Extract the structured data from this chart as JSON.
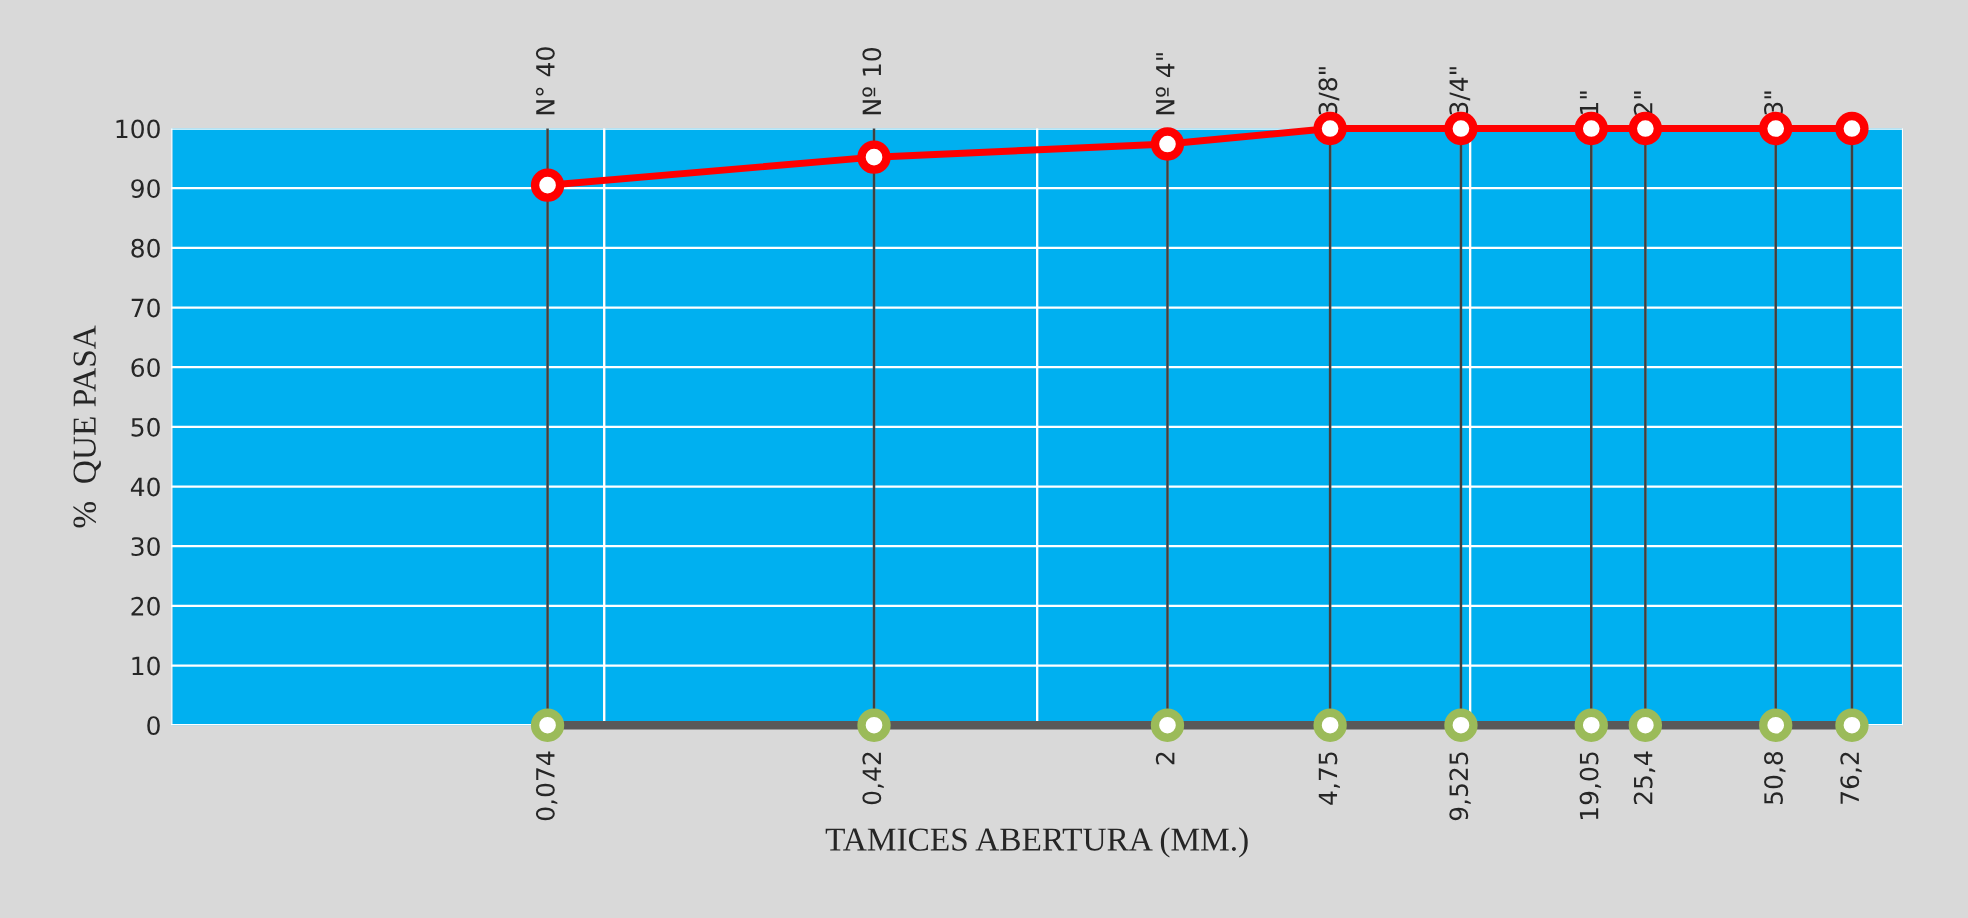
{
  "chart_data": {
    "type": "line",
    "xlabel": "TAMICES ABERTURA (MM.)",
    "ylabel": "%  QUE PASA",
    "x": [
      0.074,
      0.42,
      2,
      4.75,
      9.525,
      19.05,
      25.4,
      50.8,
      76.2
    ],
    "series": [
      {
        "color": "#ff0000",
        "values": [
          90.5,
          95.2,
          97.4,
          100,
          100,
          100,
          100,
          100,
          100
        ],
        "marker": "circle"
      },
      {
        "color": "#595959",
        "colors": [
          "#9bbb59",
          "#9bbb59",
          "#9bbb59",
          "#9bbb59",
          "#9bbb59",
          "#9bbb59",
          "#9bbb59",
          "#9bbb59",
          "#9bbb59"
        ],
        "values": [
          0,
          0,
          0,
          0,
          0,
          0,
          0,
          0,
          0
        ],
        "marker": "circle"
      }
    ],
    "log": "x",
    "xlim": [
      0.01,
      100
    ],
    "xticks": [
      {
        "value": 0.01,
        "label": null
      },
      {
        "value": 0.1,
        "label": null
      },
      {
        "value": 1,
        "label": null
      },
      {
        "value": 10,
        "label": null
      },
      {
        "value": 100,
        "label": null
      },
      {
        "value": 0.074,
        "label": "0,074"
      },
      {
        "value": 0.42,
        "label": "0,42"
      },
      {
        "value": 2,
        "label": "2"
      },
      {
        "value": 4.75,
        "label": "4,75"
      },
      {
        "value": 9.525,
        "label": "9,525"
      },
      {
        "value": 19.05,
        "label": "19,05"
      },
      {
        "value": 25.4,
        "label": "25,4"
      },
      {
        "value": 50.8,
        "label": "50,8"
      },
      {
        "value": 76.2,
        "label": "76,2"
      }
    ],
    "annotations": [
      "N° 40",
      "Nº 10",
      "Nº 4\"",
      "3/8\"",
      "3/4\"",
      "1\"",
      "2\"",
      "3\""
    ],
    "ylim": [
      0,
      100
    ],
    "yticks": [
      0,
      10,
      20,
      30,
      40,
      50,
      60,
      70,
      80,
      90,
      100
    ],
    "grid": true,
    "line_style": "solid"
  }
}
